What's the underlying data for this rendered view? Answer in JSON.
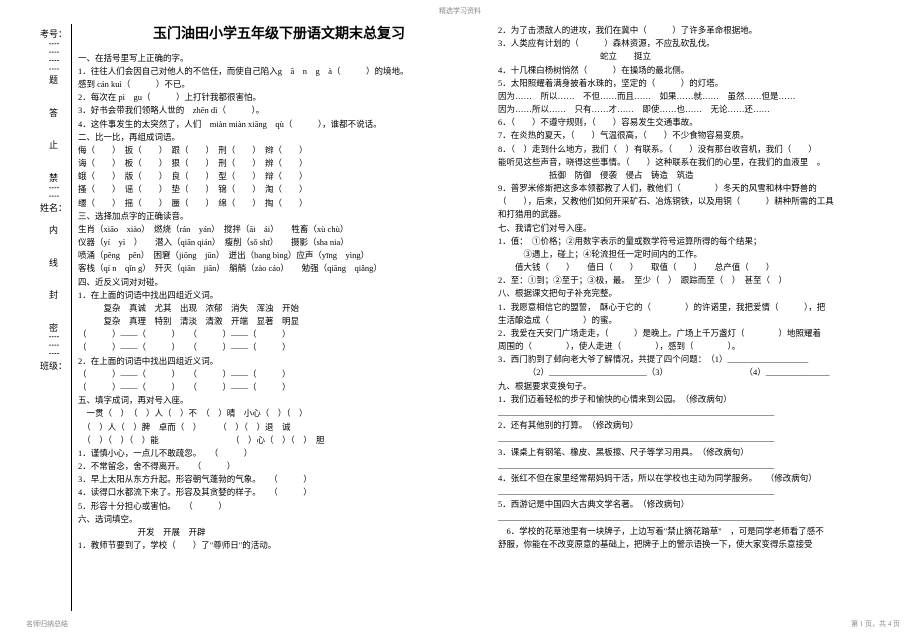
{
  "topLabel": "精选学习资料",
  "bottomLeft": "名师归纳总结",
  "bottomRight": "第 1 页，共 4 页",
  "sideLabels": [
    "考号：",
    "题",
    "答",
    "止",
    "禁",
    "姓名：",
    "内",
    "线",
    "封",
    "密",
    "班级："
  ],
  "title": "玉门油田小学五年级下册语文期末总复习",
  "left": [
    "一、在括号里写上正确的字。",
    "1．往往人们会因自己对他人的不信任，而使自己陷入g　ā　n　g　à（　　　）的境地。",
    "感到 cán kuì（　　　）不已。",
    "2．每次在 pì　gu（　　　）上打针我都很害怕。",
    "3．好书会带我们领略人世的　zhēn dì（　　　）。",
    "4．这件事发生的太突然了，人们　miàn miàn xiāng　qù（　　　），谁都不说话。",
    "二、比一比，再组成词语。",
    "侮（　　）　扳（　　）　跟（　　）　刑（　　）　辫（　　）",
    "诲（　　）　板（　　）　狠（　　）　刑（　　）　辨（　　）",
    "蛾（　　）　版（　　）　良（　　）　型（　　）　辩（　　）",
    "搔（　　）　谣（　　）　垫（　　）　锦（　　）　淘（　　）",
    "缰（　　）　摇（　　）　蜃（　　）　绵（　　）　掏（　　）",
    "三、选择加点字的正确读音。",
    "生肖（xiāo　xiào）　燃烧（rán　yán）　搅拌（āi　ái）　　牲畜（xù chù）",
    "仪器（yí　yì　）　　潜入（qiān qián）　瘦削（sǒ shī）　　摄影（sha nia）",
    "喷涌（pēng　pēn）　困窘（jiōng　jūn）　迸出（bang bìng）应声（yīng　yìng）",
    "客栈（qí n　qǐn g）　歼灭（qiān　jiān）　艄艄（zào cáo）　　勉强（qiāng　qiǎng）",
    "四、近反义词对对碰。",
    "1．在上面的词语中找出四组近义词。",
    "　　　复杂　真诚　尤其　出现　浓郁　消失　浑浊　开始",
    "　　　复杂　真理　特别　清淡　清激　开端　显著　明显",
    "（　　　）——（　　　）　　（　　　）——（　　　）",
    "（　　　）——（　　　）　　（　　　）——（　　　）",
    "2．在上面的词语中找出四组近义词。",
    "（　　　）——（　　　）　　（　　　）——（　　　）",
    "（　　　）——（　　　）　　（　　　）——（　　　）",
    "五、填字成词，再对号入座。",
    "　一贯（　）　（　）人（　）不　（　）晴　小心（　）（　）",
    "　（　）人（　）脾　卓而（　）　　　（　）（　）退　诚",
    "　（　）（　）（　）能　　　　　　　　　（　）心（　）（　）　胆",
    "1．谨慎小心，一点儿不敢疏忽。　　（　　　）",
    "2．不常留念，舍不得离开。　　（　　　）",
    "3．早上太阳从东方升起。形容朝气蓬勃的气象。　　（　　　）",
    "4．读得口水都流下来了。形容及其贪婪的样子。　　（　　　）",
    "5．形容十分担心或害怕。　　（　　　）",
    "六、选词填空。",
    "　　　　　　　开发　开展　开辟",
    "1．教师节要到了，学校（　　）了\"尊师日\"的活动。"
  ],
  "right": [
    "2．为了击溃敌人的进攻，我们在冀中（　　　）了许多革命根据地。",
    "3．人类应有计划的（　　　）森林资源，不应乱砍乱伐。",
    "　　　　　　　　　　　　蛇立　　挺立",
    "4．十几棵白杨树悄然（　　　）在操场的最北侧。",
    "5．太阳照耀着满身披着水珠的，坚定的（　　　）的灯塔。",
    "因为……　所以……　不但……而且……　如果……就……　虽然……但是……",
    "因为……所以……　只有……才……　即使……也……　无论……还……",
    "6．（　　）不遵守规则，（　　）容易发生交通事故。",
    "7．在炎热的夏天，（　　）气温很高，（　　）不少食物容易变质。",
    "8．（　）走到什么地方，我们（　）有联系。（　　）没有那台收音机，我们（　　）",
    "能听见这些声音，晓得这些事情。（　　）这种联系在我们的心里，在我们的血液里　。",
    "　　　　　　抵御　防御　侵袭　侵占　铸造　筑造",
    "9．普罗米修斯把这多本领都教了人们，教他们（　　　　）冬天的风雪和林中野兽的",
    "（　　），后来，又教他们如何开采矿石、冶炼铜铁，以及用铜（　　　）耕种所需的工具",
    "和打猎用的武器。",
    "七、我请它们对号入座。",
    "1．值：　①价格；②用数字表示的量或数学符号运算所得的每个结果；",
    "　　　③遇上，碰上；④轮流担任一定时间内的工作。",
    "　　值大钱（　　）　　值日（　　）　　取值（　　）　　总产值（　　）",
    "2．至：①到；②至于；③极，最。　至少（　）　跟踪而至（　）　甚至（　）",
    "八、根据课文把句子补充完整。",
    "1．我愿意相信它的盟誓，　酥心于它的（　　　　）的许诺里，我把爱情（　　　），把",
    "生活酿造成（　　　　）的蜜。",
    "2．我爱在天安门广场走走，（　　　）是晚上。广场上千万盏灯（　　　　）地照耀着",
    "周围的（　　　　），使人走进（　　　　），感到（　　　　）。",
    "3．西门豹到了邺向老大爷了解情况，共提了四个问题：　（1）___________________",
    "　　　　（2）_______________________（3）　　　　　　　　　　（4）_______________",
    "九、根据要求变换句子。",
    "1．我们迈着轻松的步子和愉快的心情来到公园。　（修改病句）",
    "_________________________________________________________________",
    "2．还有其他别的打算。　（修改病句）",
    "_________________________________________________________________",
    "3．课桌上有钢笔、橡皮、黑板擦、尺子等学习用具。　（修改病句）",
    "_________________________________________________________________",
    "4．张红不但在家里经常帮妈妈干活，所以在学校也主动为同学服务。　　（修改病句）",
    "_________________________________________________________________",
    "5．西游记是中国四大古典文学名著。　（修改病句）",
    "_________________________________________________________________",
    "　6．学校的花草池里有一块牌子，上边写着\"禁止摘花踏草\"　，可是同学老师看了感不",
    "舒服，你能在不改变原意的基础上，把牌子上的警示语换一下，使大家变得乐意接受"
  ]
}
